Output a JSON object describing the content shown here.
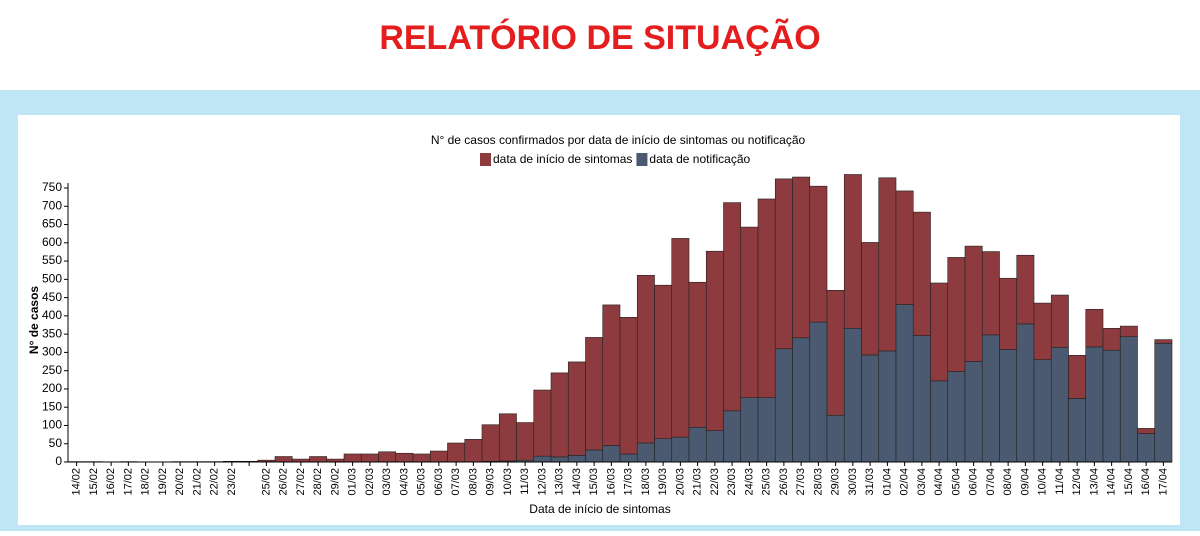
{
  "header": {
    "title": "RELATÓRIO DE SITUAÇÃO"
  },
  "chart_data": {
    "type": "stacked_bar",
    "title": "N° de casos confirmados por data de início de sintomas ou notificação",
    "x_label": "Data de início de sintomas",
    "y_label": "N° de casos",
    "categories": [
      "14/02",
      "15/02",
      "16/02",
      "17/02",
      "18/02",
      "19/02",
      "20/02",
      "21/02",
      "22/02",
      "23/02",
      null,
      "25/02",
      "26/02",
      "27/02",
      "28/02",
      "29/02",
      "01/03",
      "02/03",
      "03/03",
      "04/03",
      "05/03",
      "06/03",
      "07/03",
      "08/03",
      "09/03",
      "10/03",
      "11/03",
      "12/03",
      "13/03",
      "14/03",
      "15/03",
      "16/03",
      "17/03",
      "18/03",
      "19/03",
      "20/03",
      "21/03",
      "22/03",
      "23/03",
      "24/03",
      "25/03",
      "26/03",
      "27/03",
      "28/03",
      "29/03",
      "30/03",
      "31/03",
      "01/04",
      "02/04",
      "03/04",
      "04/04",
      "05/04",
      "06/04",
      "07/04",
      "08/04",
      "09/04",
      "10/04",
      "11/04",
      "12/04",
      "13/04",
      "14/04",
      "15/04",
      "16/04",
      "17/04"
    ],
    "series": [
      {
        "name": "data de início de sintomas",
        "color": "#8e3b3f",
        "values": [
          1,
          1,
          0,
          1,
          0,
          0,
          1,
          1,
          1,
          2,
          2,
          5,
          15,
          8,
          15,
          8,
          22,
          22,
          28,
          24,
          22,
          30,
          52,
          62,
          100,
          129,
          103,
          181,
          230,
          256,
          308,
          385,
          374,
          459,
          420,
          544,
          397,
          491,
          570,
          467,
          544,
          465,
          440,
          372,
          342,
          421,
          308,
          474,
          311,
          338,
          268,
          312,
          316,
          228,
          195,
          188,
          155,
          143,
          118,
          103,
          60,
          29,
          14,
          10
        ]
      },
      {
        "name": "data de notificação",
        "color": "#4b5a70",
        "values": [
          0,
          0,
          0,
          0,
          0,
          0,
          0,
          0,
          0,
          0,
          0,
          0,
          0,
          0,
          0,
          0,
          0,
          0,
          0,
          0,
          0,
          0,
          0,
          0,
          2,
          3,
          5,
          16,
          14,
          18,
          33,
          45,
          22,
          52,
          64,
          68,
          95,
          86,
          140,
          176,
          176,
          310,
          340,
          383,
          128,
          366,
          293,
          304,
          431,
          346,
          222,
          248,
          275,
          348,
          308,
          378,
          280,
          314,
          174,
          315,
          306,
          343,
          78,
          325
        ]
      }
    ],
    "ylim": [
      0,
      800
    ],
    "yticks": [
      0,
      50,
      100,
      150,
      200,
      250,
      300,
      350,
      400,
      450,
      500,
      550,
      600,
      650,
      700,
      750
    ],
    "legend": "top"
  }
}
